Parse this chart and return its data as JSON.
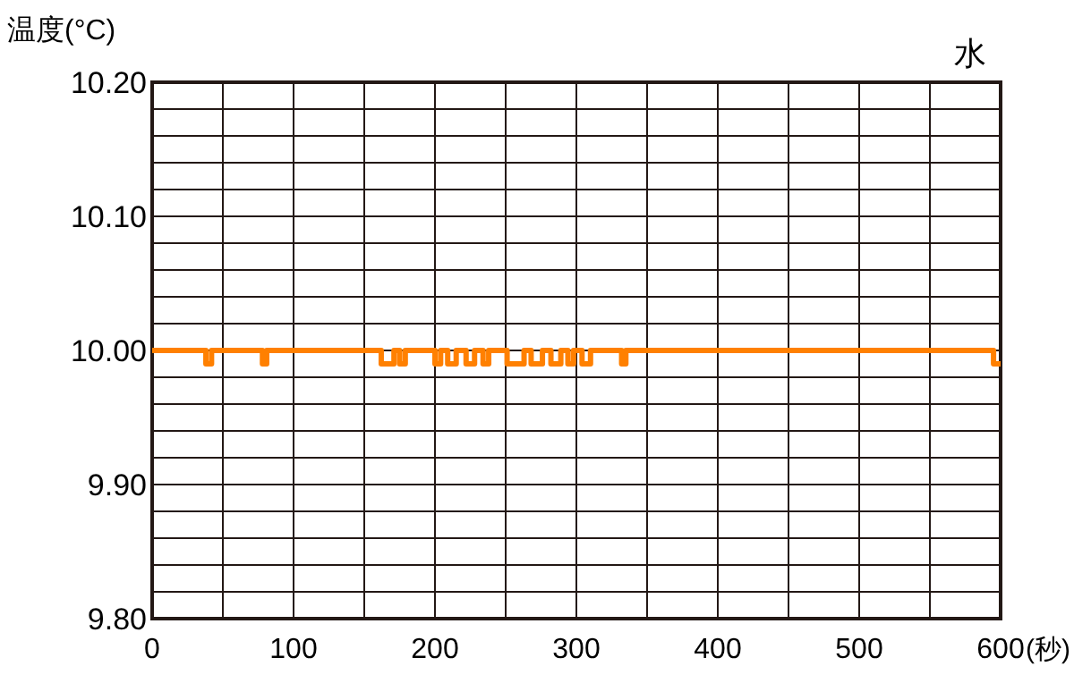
{
  "chart_data": {
    "type": "line",
    "ylabel": "温度(°C)",
    "xlabel": "(秒)",
    "annotations": [
      "水"
    ],
    "xlim": [
      0,
      600
    ],
    "ylim": [
      9.8,
      10.2
    ],
    "xticks": [
      0,
      {
        "value": 50,
        "label": null
      },
      100,
      {
        "value": 150,
        "label": null
      },
      200,
      {
        "value": 250,
        "label": null
      },
      300,
      {
        "value": 350,
        "label": null
      },
      400,
      {
        "value": 450,
        "label": null
      },
      500,
      {
        "value": 550,
        "label": null
      },
      600
    ],
    "yticks": [
      {
        "value": 9.8,
        "label": "9.80"
      },
      {
        "value": 9.82,
        "label": null
      },
      {
        "value": 9.84,
        "label": null
      },
      {
        "value": 9.86,
        "label": null
      },
      {
        "value": 9.88,
        "label": null
      },
      {
        "value": 9.9,
        "label": "9.90"
      },
      {
        "value": 9.92,
        "label": null
      },
      {
        "value": 9.94,
        "label": null
      },
      {
        "value": 9.96,
        "label": null
      },
      {
        "value": 9.98,
        "label": null
      },
      {
        "value": 10.0,
        "label": "10.00"
      },
      {
        "value": 10.02,
        "label": null
      },
      {
        "value": 10.04,
        "label": null
      },
      {
        "value": 10.06,
        "label": null
      },
      {
        "value": 10.08,
        "label": null
      },
      {
        "value": 10.1,
        "label": "10.10"
      },
      {
        "value": 10.12,
        "label": null
      },
      {
        "value": 10.14,
        "label": null
      },
      {
        "value": 10.16,
        "label": null
      },
      {
        "value": 10.18,
        "label": null
      },
      {
        "value": 10.2,
        "label": "10.20"
      }
    ],
    "grid": true,
    "line_style": "solid",
    "series": [
      {
        "color": "#ff8000",
        "x": [
          0,
          38,
          38,
          42,
          42,
          78,
          78,
          81,
          81,
          162,
          162,
          171,
          171,
          175,
          175,
          179,
          179,
          200,
          200,
          204,
          204,
          209,
          209,
          215,
          215,
          222,
          222,
          228,
          228,
          234,
          234,
          238,
          238,
          251,
          251,
          263,
          263,
          268,
          268,
          276,
          276,
          282,
          282,
          289,
          289,
          294,
          294,
          298,
          298,
          304,
          304,
          310,
          310,
          332,
          332,
          335,
          335,
          595,
          595,
          600
        ],
        "values": [
          10,
          10,
          9.99,
          9.99,
          10,
          10,
          9.99,
          9.99,
          10,
          10,
          9.99,
          9.99,
          10,
          10,
          9.99,
          9.99,
          10,
          10,
          9.99,
          9.99,
          10,
          10,
          9.99,
          9.99,
          10,
          10,
          9.99,
          9.99,
          10,
          10,
          9.99,
          9.99,
          10,
          10,
          9.99,
          9.99,
          10,
          10,
          9.99,
          9.99,
          10,
          10,
          9.99,
          9.99,
          10,
          10,
          9.99,
          9.99,
          10,
          10,
          9.99,
          9.99,
          10,
          10,
          9.99,
          9.99,
          10,
          10,
          9.99,
          9.99
        ]
      }
    ]
  }
}
